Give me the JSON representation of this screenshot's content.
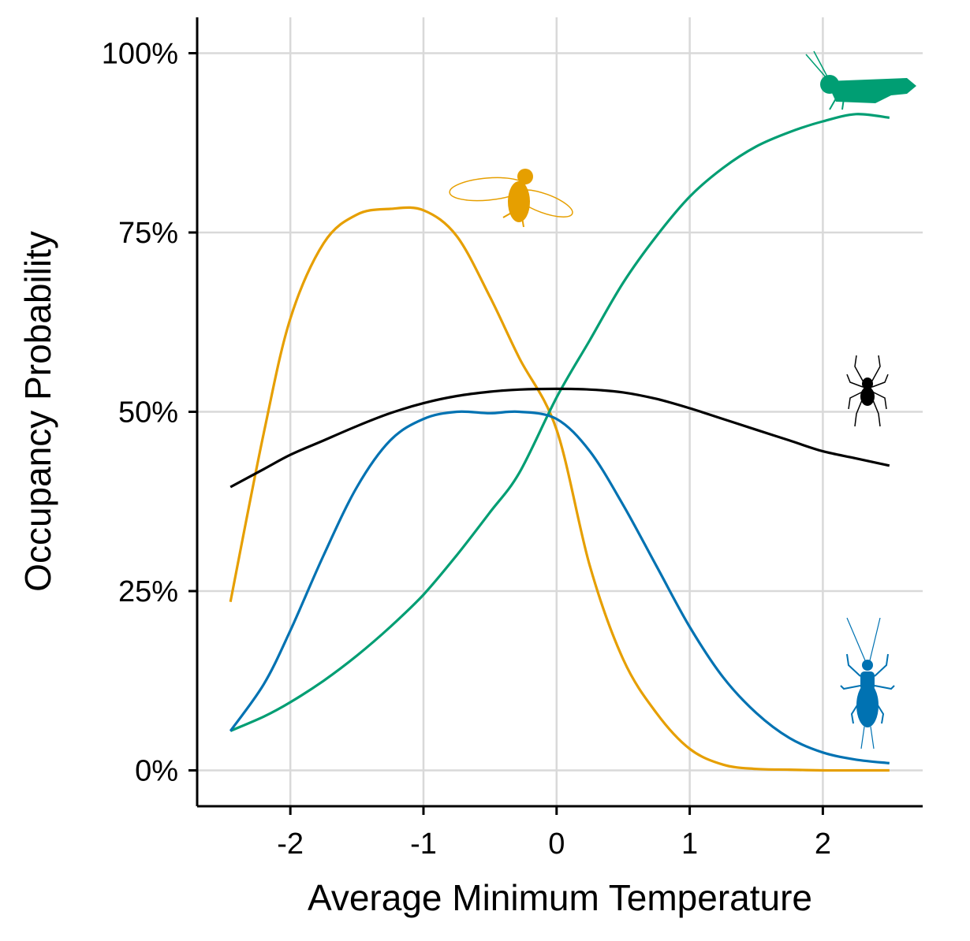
{
  "chart_data": {
    "type": "line",
    "title": "",
    "xlabel": "Average Minimum Temperature",
    "ylabel": "Occupancy Probability",
    "xlim": [
      -2.7,
      2.75
    ],
    "ylim": [
      -0.05,
      1.05
    ],
    "x_ticks": [
      {
        "value": -2,
        "label": "-2"
      },
      {
        "value": -1,
        "label": "-1"
      },
      {
        "value": 0,
        "label": "0"
      },
      {
        "value": 1,
        "label": "1"
      },
      {
        "value": 2,
        "label": "2"
      }
    ],
    "y_ticks": [
      {
        "value": 0,
        "label": "0%"
      },
      {
        "value": 0.25,
        "label": "25%"
      },
      {
        "value": 0.5,
        "label": "50%"
      },
      {
        "value": 0.75,
        "label": "75%"
      },
      {
        "value": 1.0,
        "label": "100%"
      }
    ],
    "grid": true,
    "legend": "none",
    "x": [
      -2.45,
      -2.2,
      -2.0,
      -1.75,
      -1.5,
      -1.25,
      -1.0,
      -0.75,
      -0.5,
      -0.28,
      0.0,
      0.25,
      0.5,
      0.75,
      1.0,
      1.25,
      1.5,
      1.75,
      2.0,
      2.25,
      2.5
    ],
    "series": [
      {
        "color": "#E69F00",
        "icon": "fly-icon",
        "values": [
          0.235,
          0.47,
          0.63,
          0.735,
          0.775,
          0.783,
          0.781,
          0.745,
          0.66,
          0.575,
          0.475,
          0.285,
          0.155,
          0.08,
          0.03,
          0.008,
          0.002,
          0.001,
          0.0,
          0.0,
          0.0
        ]
      },
      {
        "color": "#009E73",
        "icon": "grasshopper-icon",
        "values": [
          0.055,
          0.075,
          0.095,
          0.125,
          0.16,
          0.2,
          0.245,
          0.3,
          0.36,
          0.415,
          0.52,
          0.6,
          0.68,
          0.745,
          0.8,
          0.84,
          0.87,
          0.89,
          0.905,
          0.915,
          0.91
        ]
      },
      {
        "color": "#000000",
        "icon": "spider-icon",
        "values": [
          0.395,
          0.42,
          0.44,
          0.46,
          0.48,
          0.498,
          0.512,
          0.522,
          0.528,
          0.531,
          0.532,
          0.531,
          0.527,
          0.518,
          0.505,
          0.49,
          0.475,
          0.46,
          0.445,
          0.435,
          0.425
        ]
      },
      {
        "color": "#0072B2",
        "icon": "stonefly-icon",
        "values": [
          0.055,
          0.12,
          0.195,
          0.3,
          0.395,
          0.46,
          0.49,
          0.5,
          0.498,
          0.5,
          0.49,
          0.445,
          0.37,
          0.285,
          0.2,
          0.13,
          0.08,
          0.045,
          0.025,
          0.015,
          0.01
        ]
      }
    ]
  }
}
